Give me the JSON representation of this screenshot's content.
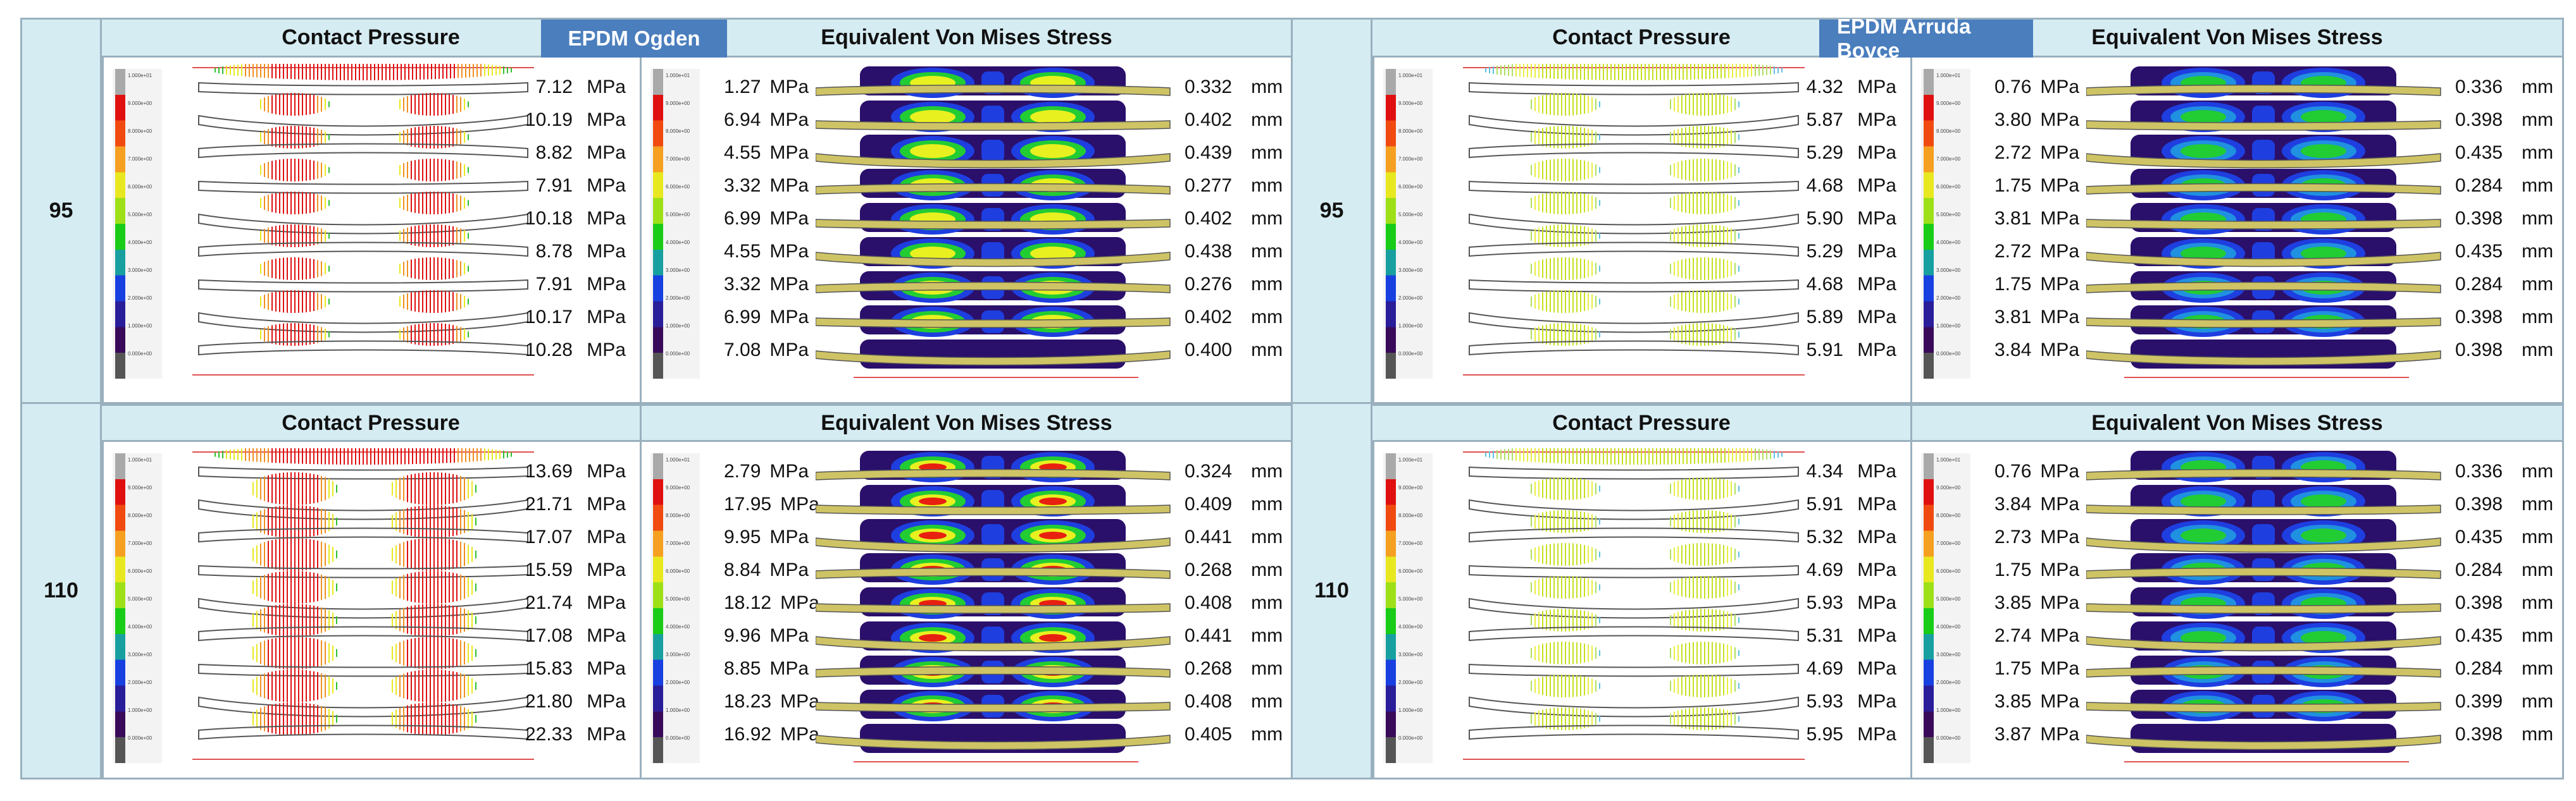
{
  "unit_mpa": "MPa",
  "unit_mm": "mm",
  "headers": {
    "contact_pressure": "Contact Pressure",
    "von_mises": "Equivalent Von  Mises Stress"
  },
  "panels": [
    {
      "material": "EPDM Ogden",
      "rows": [
        {
          "label": "95",
          "contact_pressure": [
            "7.12",
            "10.19",
            "8.82",
            "7.91",
            "10.18",
            "8.78",
            "7.91",
            "10.17",
            "10.28"
          ],
          "von_mises": [
            "1.27",
            "6.94",
            "4.55",
            "3.32",
            "6.99",
            "4.55",
            "3.32",
            "6.99",
            "7.08"
          ],
          "displacement": [
            "0.332",
            "0.402",
            "0.439",
            "0.277",
            "0.402",
            "0.438",
            "0.276",
            "0.402",
            "0.400"
          ]
        },
        {
          "label": "110",
          "contact_pressure": [
            "13.69",
            "21.71",
            "17.07",
            "15.59",
            "21.74",
            "17.08",
            "15.83",
            "21.80",
            "22.33"
          ],
          "von_mises": [
            "2.79",
            "17.95",
            "9.95",
            "8.84",
            "18.12",
            "9.96",
            "8.85",
            "18.23",
            "16.92"
          ],
          "displacement": [
            "0.324",
            "0.409",
            "0.441",
            "0.268",
            "0.408",
            "0.441",
            "0.268",
            "0.408",
            "0.405"
          ]
        }
      ]
    },
    {
      "material": "EPDM Arruda Boyce",
      "rows": [
        {
          "label": "95",
          "contact_pressure": [
            "4.32",
            "5.87",
            "5.29",
            "4.68",
            "5.90",
            "5.29",
            "4.68",
            "5.89",
            "5.91"
          ],
          "von_mises": [
            "0.76",
            "3.80",
            "2.72",
            "1.75",
            "3.81",
            "2.72",
            "1.75",
            "3.81",
            "3.84"
          ],
          "displacement": [
            "0.336",
            "0.398",
            "0.435",
            "0.284",
            "0.398",
            "0.435",
            "0.284",
            "0.398",
            "0.398"
          ]
        },
        {
          "label": "110",
          "contact_pressure": [
            "4.34",
            "5.91",
            "5.32",
            "4.69",
            "5.93",
            "5.31",
            "4.69",
            "5.93",
            "5.95"
          ],
          "von_mises": [
            "0.76",
            "3.84",
            "2.73",
            "1.75",
            "3.85",
            "2.74",
            "1.75",
            "3.85",
            "3.87"
          ],
          "displacement": [
            "0.336",
            "0.398",
            "0.435",
            "0.284",
            "0.398",
            "0.435",
            "0.284",
            "0.399",
            "0.398"
          ]
        }
      ]
    }
  ],
  "legend_ticks": [
    "1.000e+01",
    "9.000e+00",
    "8.000e+00",
    "7.000e+00",
    "6.000e+00",
    "5.000e+00",
    "4.000e+00",
    "3.000e+00",
    "2.000e+00",
    "1.000e+00",
    "0.000e+00"
  ],
  "colors": {
    "header_bg": "#d6ecf3",
    "material_bg": "#4a7ebd",
    "border": "#9ab0be",
    "seal_fill": "#cfc465",
    "dark_blue": "#2a0f6b",
    "blue": "#1e3ee0",
    "green": "#22cc33",
    "yellow": "#e8f020",
    "red": "#e82010"
  }
}
